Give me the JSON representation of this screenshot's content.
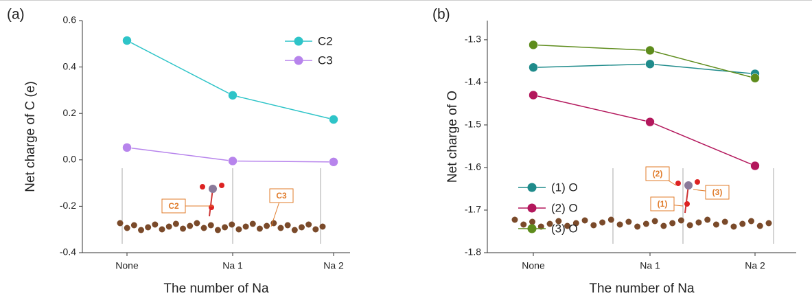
{
  "chart_data": [
    {
      "type": "line",
      "panel_label": "(a)",
      "x_label": "The number of Na",
      "y_label": "Net charge of C (e)",
      "categories": [
        "None",
        "Na 1",
        "Na 2"
      ],
      "series": [
        {
          "name": "C2",
          "color": "#2ec4c8",
          "values": [
            0.514,
            0.278,
            0.174
          ]
        },
        {
          "name": "C3",
          "color": "#b784ec",
          "values": [
            0.053,
            -0.005,
            -0.009
          ]
        }
      ],
      "ylim": [
        -0.4,
        0.6
      ],
      "yticks": [
        -0.4,
        -0.2,
        {
          "value": 0,
          "label": "0.0"
        },
        0.2,
        0.4,
        0.6
      ],
      "legend": "upper right",
      "grid": false,
      "annotations": [
        "C2",
        "C3"
      ]
    },
    {
      "type": "line",
      "panel_label": "(b)",
      "x_label": "The number of Na",
      "y_label": "Net charge of O",
      "categories": [
        "None",
        "Na 1",
        "Na 2"
      ],
      "series": [
        {
          "name": "(1) O",
          "color": "#1f8b8b",
          "values": [
            -1.365,
            -1.357,
            -1.38
          ]
        },
        {
          "name": "(2) O",
          "color": "#b3175c",
          "values": [
            -1.43,
            -1.493,
            -1.596
          ]
        },
        {
          "name": "(3) O",
          "color": "#5e8c1c",
          "values": [
            -1.312,
            -1.325,
            -1.39
          ]
        }
      ],
      "ylim": [
        -1.8,
        -1.255
      ],
      "yticks": [
        -1.8,
        -1.7,
        -1.6,
        -1.5,
        -1.4,
        -1.3
      ],
      "legend": "lower left",
      "grid": false,
      "annotations": [
        "(2)",
        "(3)",
        "(1)"
      ]
    }
  ]
}
